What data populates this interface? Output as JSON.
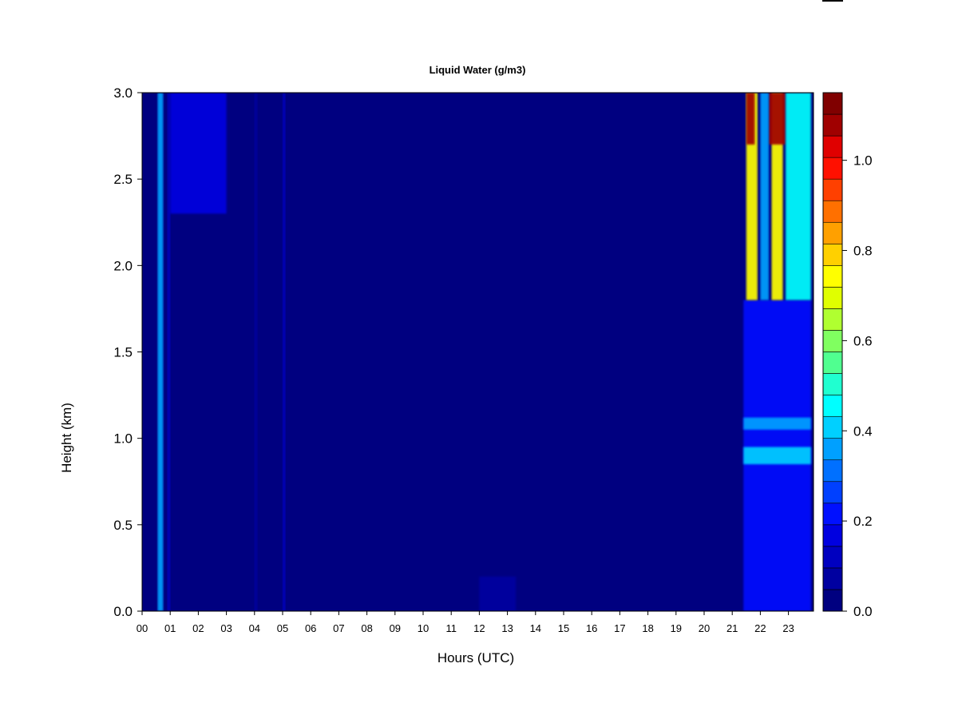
{
  "chart_data": {
    "type": "heatmap",
    "title": "Liquid Water (g/m3)",
    "xlabel": "Hours (UTC)",
    "ylabel": "Height (km)",
    "x_range": [
      0,
      23.85
    ],
    "y_range": [
      0,
      3.0
    ],
    "x_ticks": [
      "00",
      "01",
      "02",
      "03",
      "04",
      "05",
      "06",
      "07",
      "08",
      "09",
      "10",
      "11",
      "12",
      "13",
      "14",
      "15",
      "16",
      "17",
      "18",
      "19",
      "20",
      "21",
      "22",
      "23"
    ],
    "y_ticks": [
      "0.0",
      "0.5",
      "1.0",
      "1.5",
      "2.0",
      "2.5",
      "3.0"
    ],
    "colorbar": {
      "min": 0.0,
      "max": 1.15,
      "levels": 23,
      "tick_values": [
        0.0,
        0.2,
        0.4,
        0.6,
        0.8,
        1.0
      ],
      "tick_labels": [
        "0.0",
        "0.2",
        "0.4",
        "0.6",
        "0.8",
        "1.0"
      ],
      "colors": [
        "#000080",
        "#0000a0",
        "#0000c0",
        "#0000e0",
        "#0010ff",
        "#0040ff",
        "#0070ff",
        "#00a0ff",
        "#00d0ff",
        "#00ffff",
        "#20ffd0",
        "#50ff90",
        "#80ff60",
        "#b0ff30",
        "#e0ff00",
        "#ffff00",
        "#ffd000",
        "#ffa000",
        "#ff7000",
        "#ff4000",
        "#ff1000",
        "#e00000",
        "#a00000",
        "#800000"
      ]
    },
    "background_value": 0.02,
    "features": [
      {
        "x_start": 0.55,
        "x_end": 0.75,
        "y_start": 0.0,
        "y_end": 3.0,
        "value": 0.35
      },
      {
        "x_start": 0.9,
        "x_end": 1.0,
        "y_start": 0.0,
        "y_end": 3.0,
        "value": 0.12
      },
      {
        "x_start": 1.0,
        "x_end": 3.0,
        "y_start": 2.3,
        "y_end": 3.0,
        "value": 0.16
      },
      {
        "x_start": 4.0,
        "x_end": 4.1,
        "y_start": 0.0,
        "y_end": 3.0,
        "value": 0.08
      },
      {
        "x_start": 5.0,
        "x_end": 5.1,
        "y_start": 0.0,
        "y_end": 3.0,
        "value": 0.1
      },
      {
        "x_start": 12.0,
        "x_end": 13.3,
        "y_start": 0.0,
        "y_end": 0.2,
        "value": 0.07
      },
      {
        "x_start": 21.4,
        "x_end": 23.8,
        "y_start": 0.0,
        "y_end": 1.8,
        "value": 0.22
      },
      {
        "x_start": 21.4,
        "x_end": 23.8,
        "y_start": 0.85,
        "y_end": 0.95,
        "value": 0.4
      },
      {
        "x_start": 21.4,
        "x_end": 23.8,
        "y_start": 1.05,
        "y_end": 1.12,
        "value": 0.35
      },
      {
        "x_start": 21.5,
        "x_end": 21.9,
        "y_start": 1.8,
        "y_end": 3.0,
        "value": 0.75
      },
      {
        "x_start": 22.4,
        "x_end": 22.8,
        "y_start": 1.8,
        "y_end": 3.0,
        "value": 0.75
      },
      {
        "x_start": 21.5,
        "x_end": 21.8,
        "y_start": 2.7,
        "y_end": 3.0,
        "value": 1.1
      },
      {
        "x_start": 22.3,
        "x_end": 22.9,
        "y_start": 2.7,
        "y_end": 3.0,
        "value": 1.1
      },
      {
        "x_start": 22.0,
        "x_end": 22.3,
        "y_start": 1.8,
        "y_end": 3.0,
        "value": 0.35
      },
      {
        "x_start": 22.9,
        "x_end": 23.8,
        "y_start": 1.8,
        "y_end": 3.0,
        "value": 0.45
      }
    ]
  }
}
